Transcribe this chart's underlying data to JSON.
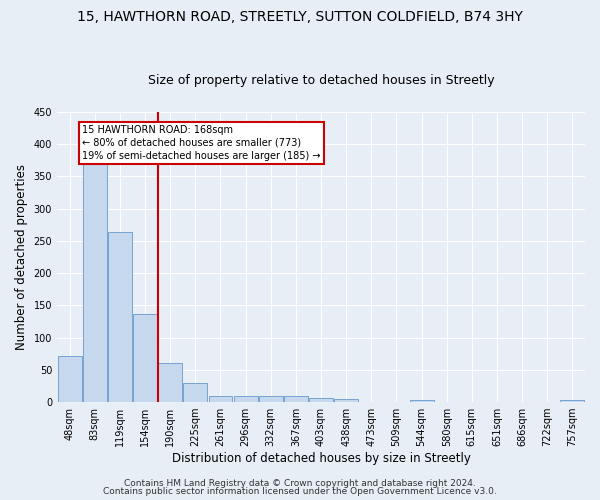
{
  "title": "15, HAWTHORN ROAD, STREETLY, SUTTON COLDFIELD, B74 3HY",
  "subtitle": "Size of property relative to detached houses in Streetly",
  "xlabel": "Distribution of detached houses by size in Streetly",
  "ylabel": "Number of detached properties",
  "footer1": "Contains HM Land Registry data © Crown copyright and database right 2024.",
  "footer2": "Contains public sector information licensed under the Open Government Licence v3.0.",
  "bar_labels": [
    "48sqm",
    "83sqm",
    "119sqm",
    "154sqm",
    "190sqm",
    "225sqm",
    "261sqm",
    "296sqm",
    "332sqm",
    "367sqm",
    "403sqm",
    "438sqm",
    "473sqm",
    "509sqm",
    "544sqm",
    "580sqm",
    "615sqm",
    "651sqm",
    "686sqm",
    "722sqm",
    "757sqm"
  ],
  "bar_values": [
    72,
    378,
    263,
    137,
    60,
    30,
    10,
    9,
    10,
    10,
    6,
    5,
    0,
    0,
    4,
    0,
    0,
    0,
    0,
    0,
    4
  ],
  "bar_color": "#c5d8ee",
  "bar_edge_color": "#6699cc",
  "vline_x": 4.0,
  "vline_color": "#cc0000",
  "annotation_text": "15 HAWTHORN ROAD: 168sqm\n← 80% of detached houses are smaller (773)\n19% of semi-detached houses are larger (185) →",
  "annotation_box_color": "#ffffff",
  "annotation_border_color": "#cc0000",
  "ylim": [
    0,
    450
  ],
  "yticks": [
    0,
    50,
    100,
    150,
    200,
    250,
    300,
    350,
    400,
    450
  ],
  "bg_color": "#e8eef6",
  "plot_bg_color": "#e8eef6",
  "grid_color": "#ffffff",
  "title_fontsize": 10,
  "subtitle_fontsize": 9,
  "label_fontsize": 8.5,
  "tick_fontsize": 7,
  "footer_fontsize": 6.5
}
